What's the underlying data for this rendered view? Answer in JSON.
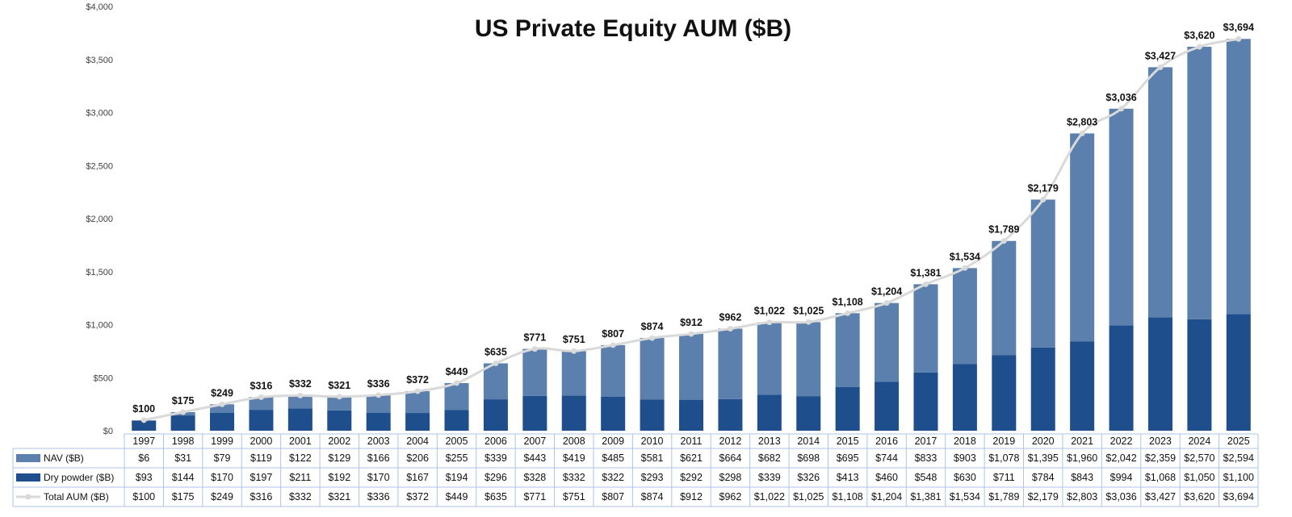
{
  "chart_data": {
    "type": "bar",
    "stacked": true,
    "title": "US Private Equity AUM ($B)",
    "xlabel": "",
    "ylabel": "",
    "ylim": [
      0,
      4000
    ],
    "yticks": [
      0,
      500,
      1000,
      1500,
      2000,
      2500,
      3000,
      3500,
      4000
    ],
    "ytick_labels": [
      "$0",
      "$500",
      "$1,000",
      "$1,500",
      "$2,000",
      "$2,500",
      "$3,000",
      "$3,500",
      "$4,000"
    ],
    "grid": false,
    "legend": "data-table",
    "categories": [
      "1997",
      "1998",
      "1999",
      "2000",
      "2001",
      "2002",
      "2003",
      "2004",
      "2005",
      "2006",
      "2007",
      "2008",
      "2009",
      "2010",
      "2011",
      "2012",
      "2013",
      "2014",
      "2015",
      "2016",
      "2017",
      "2018",
      "2019",
      "2020",
      "2021",
      "2022",
      "2023",
      "2024",
      "2025"
    ],
    "series": [
      {
        "name": "NAV ($B)",
        "kind": "bar",
        "color": "#5b80ad",
        "values": [
          6,
          31,
          79,
          119,
          122,
          129,
          166,
          206,
          255,
          339,
          443,
          419,
          485,
          581,
          621,
          664,
          682,
          698,
          695,
          744,
          833,
          903,
          1078,
          1395,
          1960,
          2042,
          2359,
          2570,
          2594
        ],
        "labels": [
          "$6",
          "$31",
          "$79",
          "$119",
          "$122",
          "$129",
          "$166",
          "$206",
          "$255",
          "$339",
          "$443",
          "$419",
          "$485",
          "$581",
          "$621",
          "$664",
          "$682",
          "$698",
          "$695",
          "$744",
          "$833",
          "$903",
          "$1,078",
          "$1,395",
          "$1,960",
          "$2,042",
          "$2,359",
          "$2,570",
          "$2,594"
        ]
      },
      {
        "name": "Dry powder ($B)",
        "kind": "bar",
        "color": "#1f4e8c",
        "values": [
          93,
          144,
          170,
          197,
          211,
          192,
          170,
          167,
          194,
          296,
          328,
          332,
          322,
          293,
          292,
          298,
          339,
          326,
          413,
          460,
          548,
          630,
          711,
          784,
          843,
          994,
          1068,
          1050,
          1100
        ],
        "labels": [
          "$93",
          "$144",
          "$170",
          "$197",
          "$211",
          "$192",
          "$170",
          "$167",
          "$194",
          "$296",
          "$328",
          "$332",
          "$322",
          "$293",
          "$292",
          "$298",
          "$339",
          "$326",
          "$413",
          "$460",
          "$548",
          "$630",
          "$711",
          "$784",
          "$843",
          "$994",
          "$1,068",
          "$1,050",
          "$1,100"
        ]
      },
      {
        "name": "Total AUM ($B)",
        "kind": "line",
        "color": "#d9d9d9",
        "values": [
          100,
          175,
          249,
          316,
          332,
          321,
          336,
          372,
          449,
          635,
          771,
          751,
          807,
          874,
          912,
          962,
          1022,
          1025,
          1108,
          1204,
          1381,
          1534,
          1789,
          2179,
          2803,
          3036,
          3427,
          3620,
          3694
        ],
        "labels": [
          "$100",
          "$175",
          "$249",
          "$316",
          "$332",
          "$321",
          "$336",
          "$372",
          "$449",
          "$635",
          "$771",
          "$751",
          "$807",
          "$874",
          "$912",
          "$962",
          "$1,022",
          "$1,025",
          "$1,108",
          "$1,204",
          "$1,381",
          "$1,534",
          "$1,789",
          "$2,179",
          "$2,803",
          "$3,036",
          "$3,427",
          "$3,620",
          "$3,694"
        ]
      }
    ]
  }
}
